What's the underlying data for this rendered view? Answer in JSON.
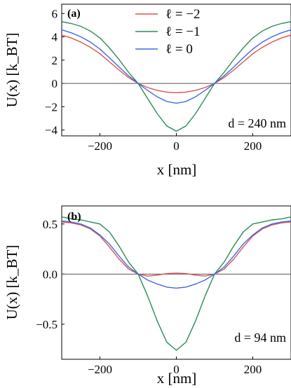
{
  "colors": {
    "l_minus2": "#d9534f",
    "l_minus1": "#2e8b57",
    "l_zero": "#4169e1"
  },
  "chart_data": [
    {
      "type": "line",
      "panel_label": "(a)",
      "xlabel": "x [nm]",
      "ylabel": "U(x) [k_BT]",
      "annotation": "d = 240 nm",
      "xlim": [
        -300,
        300
      ],
      "ylim": [
        -4.5,
        6.8
      ],
      "xticks": [
        -200,
        0,
        200
      ],
      "xtick_labels": [
        "−200",
        "0",
        "200"
      ],
      "yticks": [
        -4,
        -2,
        0,
        2,
        4,
        6
      ],
      "ytick_labels": [
        "−4",
        "−2",
        "0",
        "2",
        "4",
        "6"
      ],
      "zero_line": true,
      "legend": {
        "position": "top-center"
      },
      "x": [
        -300,
        -275,
        -250,
        -225,
        -200,
        -175,
        -150,
        -125,
        -100,
        -75,
        -50,
        -25,
        0,
        25,
        50,
        75,
        100,
        125,
        150,
        175,
        200,
        225,
        250,
        275,
        300
      ],
      "series": [
        {
          "name": "ℓ = −2",
          "color": "l_minus2",
          "values": [
            4.15,
            3.9,
            3.55,
            3.1,
            2.55,
            1.85,
            1.15,
            0.5,
            0.0,
            -0.35,
            -0.6,
            -0.75,
            -0.8,
            -0.75,
            -0.6,
            -0.35,
            0.0,
            0.5,
            1.15,
            1.85,
            2.55,
            3.1,
            3.55,
            3.9,
            4.15
          ]
        },
        {
          "name": "ℓ = −1",
          "color": "l_minus1",
          "values": [
            5.3,
            5.15,
            4.9,
            4.5,
            3.9,
            3.05,
            2.05,
            0.95,
            0.0,
            -1.3,
            -2.6,
            -3.65,
            -4.1,
            -3.65,
            -2.6,
            -1.3,
            0.0,
            0.95,
            2.05,
            3.05,
            3.9,
            4.5,
            4.9,
            5.15,
            5.3
          ]
        },
        {
          "name": "ℓ = 0",
          "color": "l_zero",
          "values": [
            4.6,
            4.35,
            4.0,
            3.55,
            2.95,
            2.2,
            1.4,
            0.65,
            0.0,
            -0.6,
            -1.15,
            -1.55,
            -1.7,
            -1.55,
            -1.15,
            -0.6,
            0.0,
            0.65,
            1.4,
            2.2,
            2.95,
            3.55,
            4.0,
            4.35,
            4.6
          ]
        }
      ]
    },
    {
      "type": "line",
      "panel_label": "(b)",
      "xlabel": "x [nm]",
      "ylabel": "U(x) [k_BT]",
      "annotation": "d = 94 nm",
      "xlim": [
        -300,
        300
      ],
      "ylim": [
        -0.85,
        0.68
      ],
      "xticks": [
        -200,
        0,
        200
      ],
      "xtick_labels": [
        "−200",
        "0",
        "200"
      ],
      "yticks": [
        -0.5,
        0.0,
        0.5
      ],
      "ytick_labels": [
        "−0.5",
        "0.0",
        "0.5"
      ],
      "zero_line": true,
      "x": [
        -300,
        -275,
        -250,
        -225,
        -200,
        -175,
        -150,
        -125,
        -100,
        -75,
        -50,
        -25,
        0,
        25,
        50,
        75,
        100,
        125,
        150,
        175,
        200,
        225,
        250,
        275,
        300
      ],
      "series": [
        {
          "name": "ℓ = −2",
          "color": "l_minus2",
          "values": [
            0.52,
            0.51,
            0.49,
            0.45,
            0.38,
            0.27,
            0.15,
            0.05,
            0.0,
            -0.02,
            -0.01,
            0.005,
            0.01,
            0.005,
            -0.01,
            -0.02,
            0.0,
            0.05,
            0.15,
            0.27,
            0.38,
            0.45,
            0.49,
            0.51,
            0.52
          ]
        },
        {
          "name": "ℓ = −1",
          "color": "l_minus1",
          "values": [
            0.57,
            0.55,
            0.54,
            0.52,
            0.5,
            0.42,
            0.28,
            0.12,
            0.0,
            -0.22,
            -0.47,
            -0.68,
            -0.76,
            -0.68,
            -0.47,
            -0.22,
            0.0,
            0.12,
            0.28,
            0.42,
            0.5,
            0.52,
            0.54,
            0.55,
            0.57
          ]
        },
        {
          "name": "ℓ = 0",
          "color": "l_zero",
          "values": [
            0.53,
            0.52,
            0.5,
            0.46,
            0.39,
            0.3,
            0.18,
            0.07,
            0.0,
            -0.06,
            -0.1,
            -0.13,
            -0.14,
            -0.13,
            -0.1,
            -0.06,
            0.0,
            0.07,
            0.18,
            0.3,
            0.39,
            0.46,
            0.5,
            0.52,
            0.53
          ]
        }
      ]
    }
  ]
}
